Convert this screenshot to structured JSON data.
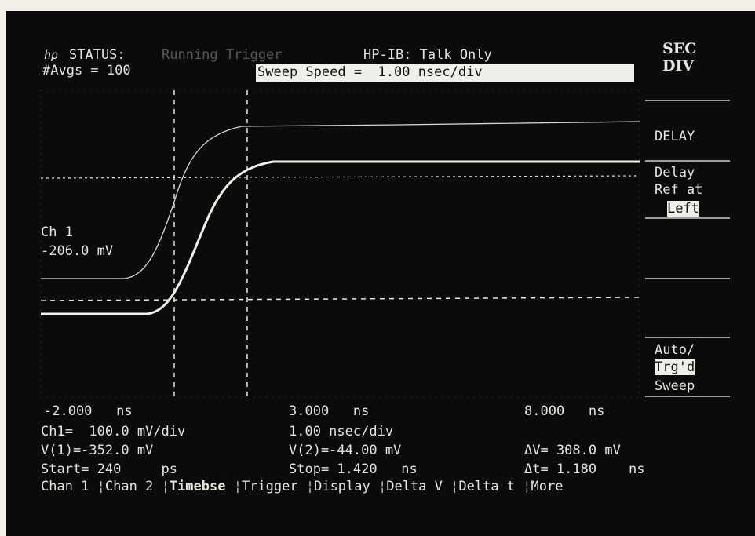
{
  "status": {
    "logo": "hp",
    "label": "STATUS:",
    "state": "Running Trigger",
    "interface": "HP-IB: Talk Only",
    "averages": "#Avgs = 100",
    "message": "Sweep Speed =  1.00 nsec/div"
  },
  "softkeys": {
    "title": [
      "SEC",
      "DIV"
    ],
    "delay": "DELAY",
    "delay_ref": [
      "Delay",
      "Ref at"
    ],
    "delay_ref_value": "Left",
    "sweep_options": "Auto/",
    "sweep_selected": "Trg'd",
    "sweep_label": "Sweep"
  },
  "channel": {
    "name": "Ch 1",
    "offset": "-206.0 mV"
  },
  "time_axis": {
    "left": "-2.000   ns",
    "center": "3.000   ns",
    "right": "8.000   ns"
  },
  "readouts": {
    "row1": [
      "Ch1=  100.0 mV/div",
      "1.00 nsec/div"
    ],
    "row2": [
      "V(1)=-352.0 mV",
      "V(2)=-44.00 mV",
      "ΔV= 308.0 mV"
    ],
    "row3": [
      "Start= 240     ps",
      "Stop= 1.420   ns",
      "Δt= 1.180    ns"
    ]
  },
  "menu": [
    "Chan 1",
    "Chan 2",
    "Timebse",
    "Trigger",
    "Display",
    "Delta V",
    "Delta t",
    "More"
  ]
}
